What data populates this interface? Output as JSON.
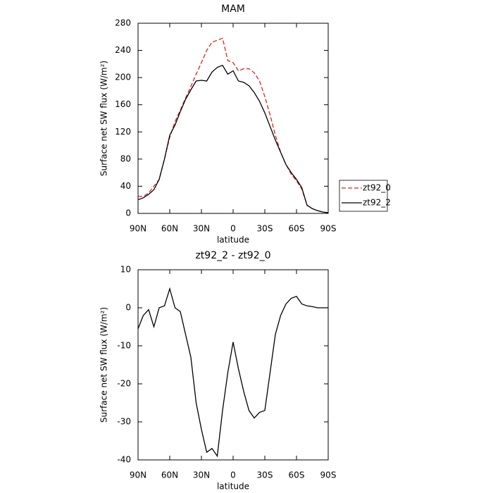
{
  "chart_data": [
    {
      "type": "line",
      "title": "MAM",
      "xlabel": "latitude",
      "ylabel": "Surface net SW flux (W/m²)",
      "x": [
        90,
        85,
        80,
        75,
        70,
        65,
        60,
        55,
        50,
        45,
        40,
        35,
        30,
        25,
        20,
        15,
        10,
        5,
        0,
        -5,
        -10,
        -15,
        -20,
        -25,
        -30,
        -35,
        -40,
        -45,
        -50,
        -55,
        -60,
        -65,
        -70,
        -75,
        -80,
        -85,
        -90
      ],
      "xlim": [
        90,
        -90
      ],
      "xticks": [
        {
          "value": 90,
          "label": "90N"
        },
        {
          "value": 60,
          "label": "60N"
        },
        {
          "value": 30,
          "label": "30N"
        },
        0,
        {
          "value": -30,
          "label": "30S"
        },
        {
          "value": -60,
          "label": "60S"
        },
        {
          "value": -90,
          "label": "90S"
        }
      ],
      "ylim": [
        0,
        280
      ],
      "yticks": [
        0,
        40,
        80,
        120,
        160,
        200,
        240,
        280
      ],
      "legend": "outside-right",
      "series": [
        {
          "name": "zt92_0",
          "color": "#e02020",
          "dashed": true,
          "values": [
            25,
            25,
            30,
            40,
            50,
            80,
            112,
            135,
            152,
            170,
            187,
            205,
            222,
            240,
            252,
            255,
            258,
            225,
            222,
            210,
            213,
            213,
            207,
            195,
            172,
            145,
            115,
            90,
            72,
            58,
            48,
            36,
            12,
            7,
            4,
            2,
            1
          ]
        },
        {
          "name": "zt92_2",
          "color": "#000000",
          "dashed": false,
          "values": [
            20,
            23,
            28,
            35,
            50,
            80,
            115,
            130,
            150,
            168,
            182,
            195,
            196,
            195,
            208,
            215,
            218,
            205,
            210,
            195,
            193,
            188,
            178,
            165,
            148,
            128,
            108,
            90,
            72,
            60,
            50,
            38,
            12,
            7,
            4,
            2,
            1
          ]
        }
      ]
    },
    {
      "type": "line",
      "title": "zt92_2 - zt92_0",
      "xlabel": "latitude",
      "ylabel": "Surface net SW flux (W/m²)",
      "x": [
        90,
        85,
        80,
        75,
        70,
        65,
        60,
        55,
        50,
        45,
        40,
        35,
        30,
        25,
        20,
        15,
        10,
        5,
        0,
        -5,
        -10,
        -15,
        -20,
        -25,
        -30,
        -35,
        -40,
        -45,
        -50,
        -55,
        -60,
        -65,
        -70,
        -75,
        -80,
        -85,
        -90
      ],
      "xlim": [
        90,
        -90
      ],
      "xticks": [
        {
          "value": 90,
          "label": "90N"
        },
        {
          "value": 60,
          "label": "60N"
        },
        {
          "value": 30,
          "label": "30N"
        },
        0,
        {
          "value": -30,
          "label": "30S"
        },
        {
          "value": -60,
          "label": "60S"
        },
        {
          "value": -90,
          "label": "90S"
        }
      ],
      "ylim": [
        -40,
        10
      ],
      "yticks": [
        -40,
        -30,
        -20,
        -10,
        0,
        10
      ],
      "series": [
        {
          "color": "#000000",
          "dashed": false,
          "values": [
            -5.5,
            -2,
            -0.5,
            -5,
            0,
            0.5,
            5,
            0,
            -1,
            -7,
            -13,
            -25,
            -32,
            -38,
            -37,
            -39,
            -27,
            -17,
            -9,
            -16,
            -22,
            -27,
            -29,
            -27.5,
            -27,
            -17,
            -7,
            -2,
            1,
            2.5,
            3,
            1,
            0.5,
            0.3,
            0,
            0,
            0
          ]
        }
      ]
    }
  ]
}
